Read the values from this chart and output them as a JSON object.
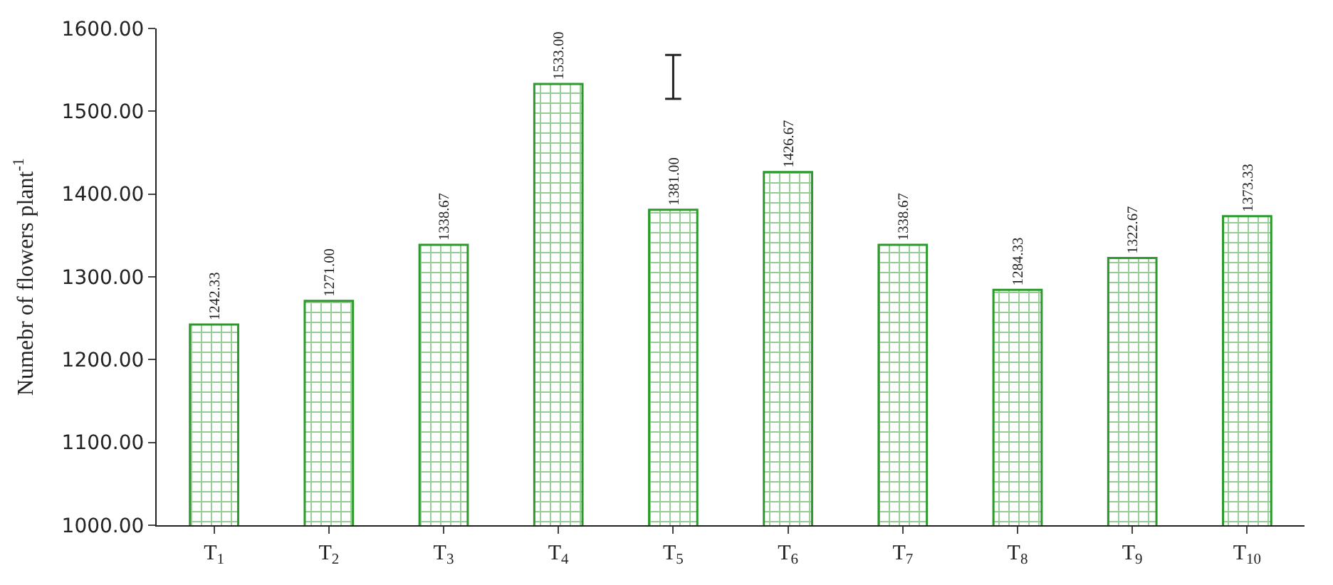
{
  "chart_data": {
    "type": "bar",
    "ylabel": "Numebr of flowers plant$^{-1}$",
    "categories": [
      "T$_{1}$",
      "T$_{2}$",
      "T$_{3}$",
      "T$_{4}$",
      "T$_{5}$",
      "T$_{6}$",
      "T$_{7}$",
      "T$_{8}$",
      "T$_{9}$",
      "T$_{10}$"
    ],
    "values": [
      1242.33,
      1271.0,
      1338.67,
      1533.0,
      1381.0,
      1426.67,
      1338.67,
      1284.33,
      1322.67,
      1373.33
    ],
    "value_labels": [
      "1242.33",
      "1271.00",
      "1338.67",
      "1533.00",
      "1381.00",
      "1426.67",
      "1338.67",
      "1284.33",
      "1322.67",
      "1373.33"
    ],
    "errors": [
      null,
      null,
      null,
      null,
      [
        1515,
        1568
      ],
      null,
      null,
      null,
      null,
      null
    ],
    "color": "#2a9a2a",
    "ylim": [
      1000,
      1600
    ],
    "yticks": [
      {
        "value": 1000,
        "label": "1000.00"
      },
      {
        "value": 1100,
        "label": "1100.00"
      },
      {
        "value": 1200,
        "label": "1200.00"
      },
      {
        "value": 1300,
        "label": "1300.00"
      },
      {
        "value": 1400,
        "label": "1400.00"
      },
      {
        "value": 1500,
        "label": "1500.00"
      },
      {
        "value": 1600,
        "label": "1600.00"
      }
    ],
    "legend": false
  }
}
